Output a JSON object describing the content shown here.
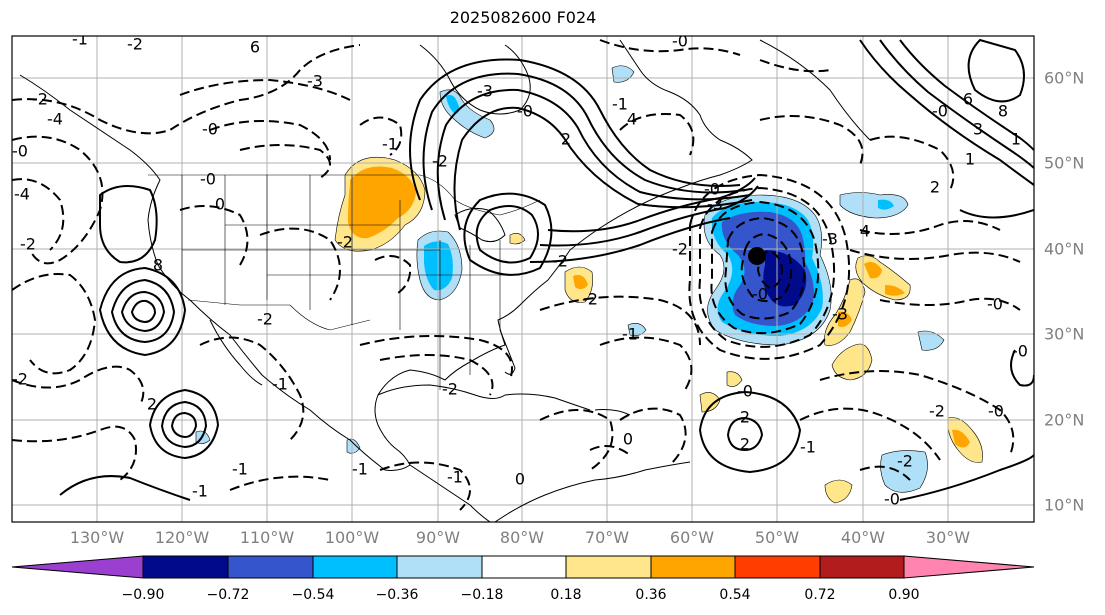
{
  "title": "2025082600 F024",
  "lon_labels": [
    "130°W",
    "120°W",
    "110°W",
    "100°W",
    "90°W",
    "80°W",
    "70°W",
    "60°W",
    "50°W",
    "40°W",
    "30°W"
  ],
  "lat_labels": [
    "60°N",
    "50°N",
    "40°N",
    "30°N",
    "20°N",
    "10°N"
  ],
  "colorbar": {
    "ticks": [
      "−0.90",
      "−0.72",
      "−0.54",
      "−0.36",
      "−0.18",
      "0.18",
      "0.36",
      "0.54",
      "0.72",
      "0.90"
    ],
    "colors": [
      "#9a3fd0",
      "#000a8a",
      "#3555cc",
      "#00bfff",
      "#b0e0f8",
      "#ffffff",
      "#ffe68a",
      "#ffa500",
      "#ff3d00",
      "#b21c1c",
      "#ff85b0"
    ]
  },
  "contour_labels": [
    "-2",
    "-2",
    "6",
    "-3",
    "-1",
    "-4",
    "-4",
    "-0",
    "-2",
    "-1",
    "-2",
    "0",
    "-0",
    "4",
    "-3",
    "2",
    "-0",
    "-1",
    "-2",
    "-1",
    "-2",
    "-3",
    "4",
    "-3",
    "-0",
    "-3",
    "8",
    "-2",
    "-0",
    "6",
    "8",
    "3",
    "1",
    "2",
    "-0",
    "2",
    "-0",
    "-2",
    "-1",
    "-0",
    "0",
    "2",
    "-1",
    "-1",
    "0",
    "2",
    "-2",
    "-2",
    "-1",
    "-0",
    "-0",
    "-2",
    "1",
    "-2",
    "-0",
    "-2",
    "-1",
    "-0",
    "-0",
    "-1"
  ],
  "markers": {
    "storm_center": "black dot"
  }
}
